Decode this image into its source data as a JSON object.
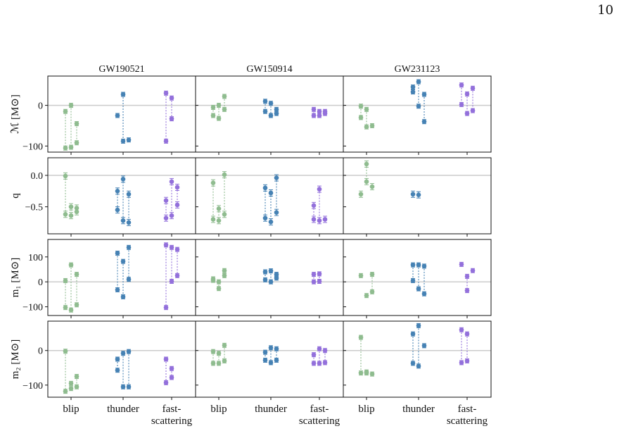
{
  "page_number": "10",
  "colors": {
    "blip": "#8fbc8f",
    "thunder": "#4682b4",
    "fast-scattering": "#9370db",
    "zero_line": "#cccccc"
  },
  "chart_data": {
    "type": "scatter",
    "columns": [
      "GW190521",
      "GW150914",
      "GW231123"
    ],
    "categories": [
      "blip",
      "thunder",
      "fast-\nscattering"
    ],
    "category_keys": [
      "blip",
      "thunder",
      "fast-scattering"
    ],
    "rows": [
      {
        "key": "mc",
        "ylabel": "ℳ [M⊙]",
        "ylim": [
          -115,
          72
        ],
        "yticks": [
          -100,
          0
        ],
        "ytick_labels": [
          "−100",
          "0"
        ]
      },
      {
        "key": "q",
        "ylabel": "q",
        "ylim": [
          -0.93,
          0.28
        ],
        "yticks": [
          -0.5,
          0.0
        ],
        "ytick_labels": [
          "−0.5",
          "0.0"
        ]
      },
      {
        "key": "m1",
        "ylabel": "m₁ [M⊙]",
        "ylim": [
          -135,
          170
        ],
        "yticks": [
          -100,
          0,
          100
        ],
        "ytick_labels": [
          "−100",
          "0",
          "100"
        ]
      },
      {
        "key": "m2",
        "ylabel": "m₂ [M⊙]",
        "ylim": [
          -135,
          85
        ],
        "yticks": [
          -100,
          0
        ],
        "ytick_labels": [
          "−100",
          "0"
        ]
      }
    ],
    "groups": {
      "mc": [
        {
          "blip": [
            [
              -15,
              -105
            ],
            [
              0,
              -103
            ],
            [
              -45,
              -92
            ]
          ],
          "thunder": [
            [
              -25
            ],
            [
              27,
              -88
            ],
            [
              -85
            ]
          ],
          "fast-scattering": [
            [
              30,
              -88
            ],
            [
              18,
              -33
            ]
          ]
        },
        {
          "blip": [
            [
              -5,
              -25
            ],
            [
              0,
              -32
            ],
            [
              22,
              -10
            ]
          ],
          "thunder": [
            [
              10,
              -15
            ],
            [
              5,
              -25
            ],
            [
              -10,
              -20
            ]
          ],
          "fast-scattering": [
            [
              -10,
              -25
            ],
            [
              -15,
              -25
            ],
            [
              -15,
              -20
            ]
          ]
        },
        {
          "blip": [
            [
              -2,
              -30
            ],
            [
              -10,
              -53
            ],
            [
              -50
            ]
          ],
          "thunder": [
            [
              45,
              33
            ],
            [
              58,
              -2
            ],
            [
              27,
              -40
            ]
          ],
          "fast-scattering": [
            [
              50,
              2
            ],
            [
              28,
              -20
            ],
            [
              42,
              -13
            ]
          ]
        }
      ],
      "q": [
        {
          "blip": [
            [
              -0.01,
              -0.62
            ],
            [
              -0.5,
              -0.64
            ],
            [
              -0.52,
              -0.58
            ]
          ],
          "thunder": [
            [
              -0.25,
              -0.55
            ],
            [
              -0.06,
              -0.72
            ],
            [
              -0.3,
              -0.75
            ]
          ],
          "fast-scattering": [
            [
              -0.4,
              -0.68
            ],
            [
              -0.1,
              -0.64
            ],
            [
              -0.19,
              -0.47
            ]
          ]
        },
        {
          "blip": [
            [
              -0.12,
              -0.7
            ],
            [
              -0.53,
              -0.72
            ],
            [
              0.01,
              -0.62
            ]
          ],
          "thunder": [
            [
              -0.2,
              -0.68
            ],
            [
              -0.28,
              -0.74
            ],
            [
              -0.04,
              -0.59
            ]
          ],
          "fast-scattering": [
            [
              -0.48,
              -0.7
            ],
            [
              -0.22,
              -0.72
            ],
            [
              -0.7
            ]
          ]
        },
        {
          "blip": [
            [
              -0.3
            ],
            [
              0.18,
              -0.1
            ],
            [
              -0.18
            ]
          ],
          "thunder": [
            [
              -0.3
            ],
            [
              -0.31
            ]
          ],
          "fast-scattering": []
        }
      ],
      "m1": [
        {
          "blip": [
            [
              5,
              -103
            ],
            [
              68,
              -113
            ],
            [
              30,
              -92
            ]
          ],
          "thunder": [
            [
              115,
              -32
            ],
            [
              82,
              -60
            ],
            [
              138,
              10
            ]
          ],
          "fast-scattering": [
            [
              148,
              -103
            ],
            [
              138,
              2
            ],
            [
              130,
              25
            ]
          ]
        },
        {
          "blip": [
            [
              12,
              6
            ],
            [
              -27,
              0
            ],
            [
              45,
              25
            ]
          ],
          "thunder": [
            [
              40,
              8
            ],
            [
              44,
              0
            ],
            [
              30,
              15
            ]
          ],
          "fast-scattering": [
            [
              30,
              0
            ],
            [
              32,
              2
            ]
          ]
        },
        {
          "blip": [
            [
              25
            ],
            [
              -55
            ],
            [
              30,
              -40
            ]
          ],
          "thunder": [
            [
              68,
              5
            ],
            [
              68,
              -28
            ],
            [
              63,
              -48
            ]
          ],
          "fast-scattering": [
            [
              70
            ],
            [
              22,
              -35
            ],
            [
              45
            ]
          ]
        }
      ],
      "m2": [
        {
          "blip": [
            [
              -2,
              -118
            ],
            [
              -95,
              -110
            ],
            [
              -75,
              -105
            ]
          ],
          "thunder": [
            [
              -25,
              -57
            ],
            [
              -8,
              -105
            ],
            [
              -3,
              -105
            ]
          ],
          "fast-scattering": [
            [
              -25,
              -93
            ],
            [
              -52,
              -78
            ]
          ]
        },
        {
          "blip": [
            [
              -3,
              -37
            ],
            [
              -8,
              -37
            ],
            [
              15,
              -30
            ]
          ],
          "thunder": [
            [
              -5,
              -28
            ],
            [
              8,
              -35
            ],
            [
              5,
              -28
            ]
          ],
          "fast-scattering": [
            [
              -12,
              -37
            ],
            [
              5,
              -37
            ],
            [
              0,
              -35
            ]
          ]
        },
        {
          "blip": [
            [
              -65,
              38
            ],
            [
              -62,
              -65
            ],
            [
              -68
            ]
          ],
          "thunder": [
            [
              48,
              -37
            ],
            [
              72,
              -45
            ],
            [
              14
            ]
          ],
          "fast-scattering": [
            [
              60,
              -35
            ],
            [
              48,
              -30
            ]
          ]
        }
      ]
    },
    "grid": false,
    "legend": "none"
  }
}
